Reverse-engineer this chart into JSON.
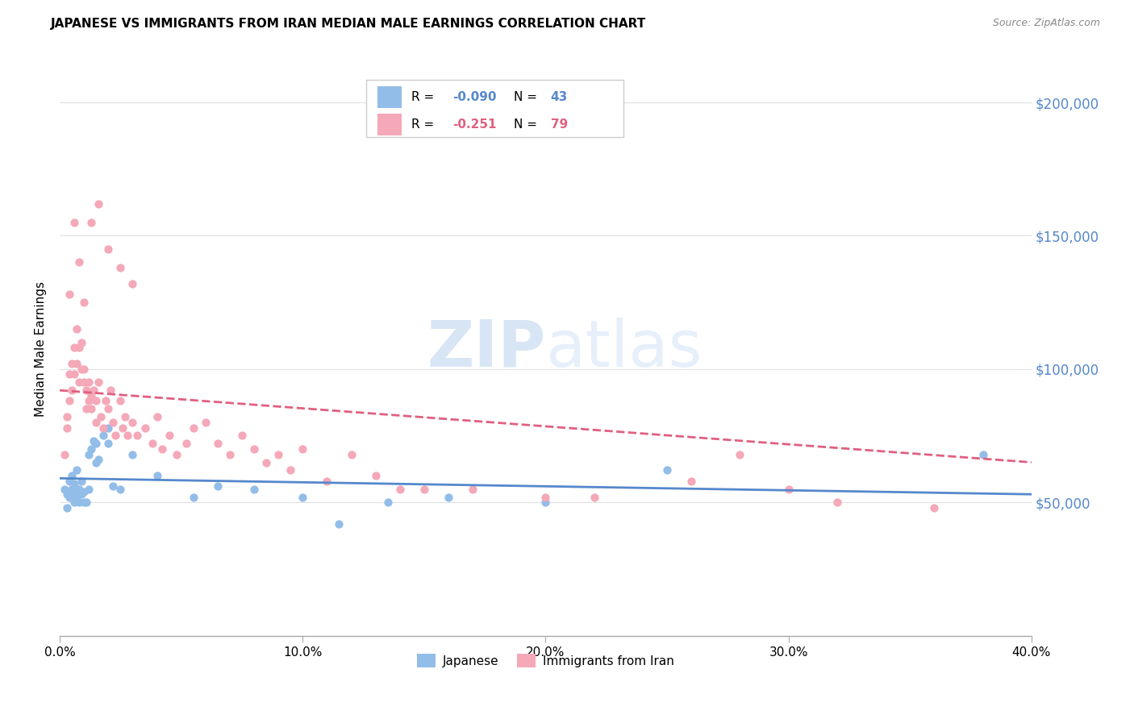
{
  "title": "JAPANESE VS IMMIGRANTS FROM IRAN MEDIAN MALE EARNINGS CORRELATION CHART",
  "source": "Source: ZipAtlas.com",
  "ylabel": "Median Male Earnings",
  "ytick_vals": [
    50000,
    100000,
    150000,
    200000
  ],
  "ytick_labels": [
    "$50,000",
    "$100,000",
    "$150,000",
    "$200,000"
  ],
  "xtick_positions": [
    0.0,
    0.1,
    0.2,
    0.3,
    0.4
  ],
  "xtick_labels": [
    "0.0%",
    "10.0%",
    "20.0%",
    "30.0%",
    "40.0%"
  ],
  "xlim": [
    0.0,
    0.4
  ],
  "ylim": [
    0,
    215000
  ],
  "watermark": "ZIPatlas",
  "blue_color": "#92bde8",
  "pink_color": "#f4a8b8",
  "blue_line_color": "#5588cc",
  "pink_line_color": "#e06080",
  "tick_color": "#5588cc",
  "legend_blue_r": "R = -0.090",
  "legend_blue_n": "N = 43",
  "legend_pink_r": "R =  -0.251",
  "legend_pink_n": "N = 79",
  "blue_x": [
    0.002,
    0.003,
    0.004,
    0.005,
    0.005,
    0.006,
    0.006,
    0.007,
    0.008,
    0.009,
    0.01,
    0.011,
    0.012,
    0.013,
    0.014,
    0.015,
    0.016,
    0.018,
    0.02,
    0.022,
    0.003,
    0.004,
    0.006,
    0.007,
    0.008,
    0.009,
    0.01,
    0.012,
    0.015,
    0.02,
    0.025,
    0.03,
    0.04,
    0.055,
    0.065,
    0.08,
    0.1,
    0.115,
    0.135,
    0.16,
    0.2,
    0.25,
    0.38
  ],
  "blue_y": [
    55000,
    53000,
    58000,
    60000,
    55000,
    50000,
    57000,
    52000,
    55000,
    58000,
    54000,
    50000,
    68000,
    70000,
    73000,
    72000,
    66000,
    75000,
    78000,
    56000,
    48000,
    52000,
    53000,
    62000,
    50000,
    53000,
    50000,
    55000,
    65000,
    72000,
    55000,
    68000,
    60000,
    52000,
    56000,
    55000,
    52000,
    42000,
    50000,
    52000,
    50000,
    62000,
    68000
  ],
  "pink_x": [
    0.002,
    0.003,
    0.003,
    0.004,
    0.004,
    0.005,
    0.005,
    0.006,
    0.006,
    0.007,
    0.007,
    0.008,
    0.008,
    0.009,
    0.009,
    0.01,
    0.01,
    0.011,
    0.011,
    0.012,
    0.012,
    0.013,
    0.013,
    0.014,
    0.015,
    0.015,
    0.016,
    0.017,
    0.018,
    0.019,
    0.02,
    0.021,
    0.022,
    0.023,
    0.025,
    0.026,
    0.027,
    0.028,
    0.03,
    0.032,
    0.035,
    0.038,
    0.04,
    0.042,
    0.045,
    0.048,
    0.052,
    0.055,
    0.06,
    0.065,
    0.07,
    0.075,
    0.08,
    0.085,
    0.09,
    0.095,
    0.1,
    0.11,
    0.12,
    0.13,
    0.14,
    0.15,
    0.17,
    0.2,
    0.22,
    0.26,
    0.28,
    0.3,
    0.32,
    0.36,
    0.004,
    0.006,
    0.008,
    0.01,
    0.013,
    0.016,
    0.02,
    0.025,
    0.03
  ],
  "pink_y": [
    68000,
    78000,
    82000,
    98000,
    88000,
    102000,
    92000,
    108000,
    98000,
    115000,
    102000,
    108000,
    95000,
    100000,
    110000,
    95000,
    100000,
    92000,
    85000,
    95000,
    88000,
    90000,
    85000,
    92000,
    80000,
    88000,
    95000,
    82000,
    78000,
    88000,
    85000,
    92000,
    80000,
    75000,
    88000,
    78000,
    82000,
    75000,
    80000,
    75000,
    78000,
    72000,
    82000,
    70000,
    75000,
    68000,
    72000,
    78000,
    80000,
    72000,
    68000,
    75000,
    70000,
    65000,
    68000,
    62000,
    70000,
    58000,
    68000,
    60000,
    55000,
    55000,
    55000,
    52000,
    52000,
    58000,
    68000,
    55000,
    50000,
    48000,
    128000,
    155000,
    140000,
    125000,
    155000,
    162000,
    145000,
    138000,
    132000
  ],
  "blue_line_x0": 0.0,
  "blue_line_x1": 0.4,
  "blue_line_y0": 59000,
  "blue_line_y1": 53000,
  "pink_line_x0": 0.0,
  "pink_line_x1": 0.4,
  "pink_line_y0": 92000,
  "pink_line_y1": 65000
}
